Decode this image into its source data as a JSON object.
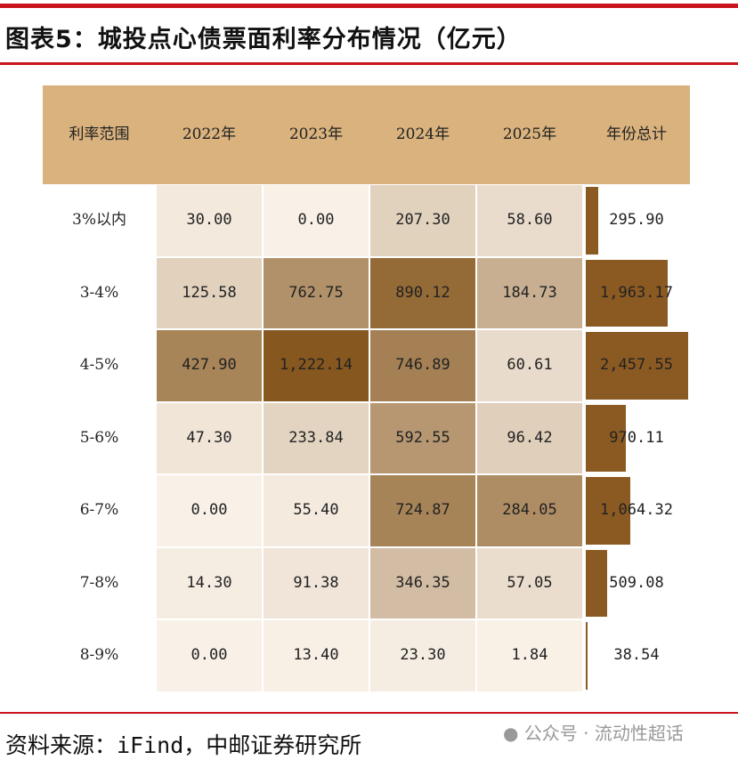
{
  "title": "图表5：城投点心债票面利率分布情况（亿元）",
  "source": "资料来源：iFind，中邮证券研究所",
  "watermark": "公众号 · 流动性超话",
  "colors": {
    "header": "#d9b27d",
    "low": "#f9f1e7",
    "high": "#86571f",
    "bar": "#8b5a22",
    "rule": "#c8141c"
  },
  "chart_data": {
    "type": "table",
    "title": "图表5：城投点心债票面利率分布情况（亿元）",
    "columns": [
      "利率范围",
      "2022年",
      "2023年",
      "2024年",
      "2025年",
      "年份总计"
    ],
    "rows": [
      "3%以内",
      "3-4%",
      "4-5%",
      "5-6%",
      "6-7%",
      "7-8%",
      "8-9%"
    ],
    "values": [
      [
        "30.00",
        "0.00",
        "207.30",
        "58.60"
      ],
      [
        "125.58",
        "762.75",
        "890.12",
        "184.73"
      ],
      [
        "427.90",
        "1,222.14",
        "746.89",
        "60.61"
      ],
      [
        "47.30",
        "233.84",
        "592.55",
        "96.42"
      ],
      [
        "0.00",
        "55.40",
        "724.87",
        "284.05"
      ],
      [
        "14.30",
        "91.38",
        "346.35",
        "57.05"
      ],
      [
        "0.00",
        "13.40",
        "23.30",
        "1.84"
      ]
    ],
    "totals": [
      "295.90",
      "1,963.17",
      "2,457.55",
      "970.11",
      "1,064.32",
      "509.08",
      "38.54"
    ]
  }
}
